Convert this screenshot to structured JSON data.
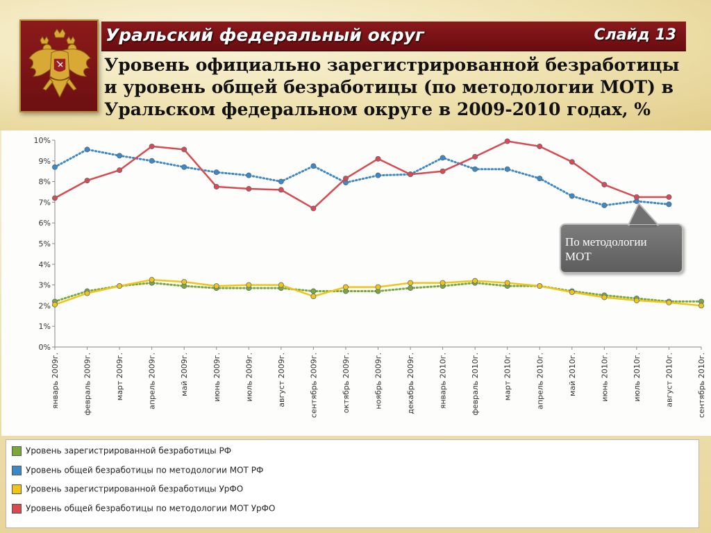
{
  "header": {
    "region_title": "Уральский федеральный округ",
    "slide_label": "Слайд 13",
    "subtitle_lines": [
      "Уровень официально зарегистрированной безработицы",
      "и уровень общей безработицы (по методологии МОТ) в",
      "Уральском федеральном округе в 2009-2010 годах, %"
    ]
  },
  "callout": {
    "text_line1": "По методологии",
    "text_line2": "МОТ"
  },
  "colors": {
    "green": "#7aa83a",
    "blue": "#3d87c2",
    "yellow": "#f0c419",
    "red": "#d84a4f"
  },
  "chart_data": {
    "type": "line",
    "categories": [
      "январь 2009г.",
      "февраль 2009г.",
      "март 2009г.",
      "апрель 2009г.",
      "май 2009г.",
      "июнь 2009г.",
      "июль 2009г.",
      "август 2009г.",
      "сентябрь 2009г.",
      "октябрь 2009г.",
      "ноябрь 2009г.",
      "декабрь 2009г.",
      "январь 2010г.",
      "февраль 2010г.",
      "март 2010г.",
      "апрель 2010г.",
      "май 2010г.",
      "июнь 2010г.",
      "июль 2010г.",
      "август 2010г.",
      "сентябрь 2010г."
    ],
    "y_ticks": [
      "0%",
      "1%",
      "2%",
      "3%",
      "4%",
      "5%",
      "6%",
      "7%",
      "8%",
      "9%",
      "10%"
    ],
    "ylim": [
      0,
      10
    ],
    "series": [
      {
        "name": "Уровень зарегистрированной безработицы РФ",
        "color": "#7aa83a",
        "style": "dotted",
        "values": [
          2.2,
          2.7,
          2.95,
          3.1,
          2.95,
          2.85,
          2.85,
          2.85,
          2.7,
          2.7,
          2.7,
          2.85,
          2.95,
          3.1,
          2.95,
          2.95,
          2.7,
          2.5,
          2.35,
          2.2,
          2.2
        ]
      },
      {
        "name": "Уровень общей безработицы по методологии МОТ РФ",
        "color": "#3d87c2",
        "style": "dotted",
        "values": [
          8.7,
          9.55,
          9.25,
          9.0,
          8.7,
          8.45,
          8.3,
          8.0,
          8.75,
          7.95,
          8.3,
          8.35,
          9.15,
          8.6,
          8.6,
          8.15,
          7.3,
          6.85,
          7.05,
          6.9,
          null
        ]
      },
      {
        "name": "Уровень зарегистрированной безработицы  УрФО",
        "color": "#f0c419",
        "style": "solid",
        "values": [
          2.05,
          2.6,
          2.95,
          3.25,
          3.15,
          2.95,
          3.0,
          3.0,
          2.45,
          2.9,
          2.9,
          3.1,
          3.1,
          3.2,
          3.1,
          2.95,
          2.65,
          2.4,
          2.25,
          2.15,
          2.0
        ]
      },
      {
        "name": "Уровень общей безработицы по методологии МОТ УрФО",
        "color": "#d84a4f",
        "style": "solid",
        "values": [
          7.2,
          8.05,
          8.55,
          9.7,
          9.55,
          7.75,
          7.65,
          7.6,
          6.7,
          8.15,
          9.1,
          8.35,
          8.5,
          9.2,
          9.95,
          9.7,
          8.95,
          7.85,
          7.25,
          7.25,
          null
        ]
      }
    ]
  },
  "legend": {
    "items": [
      {
        "label": "Уровень зарегистрированной безработицы РФ",
        "color": "#7aa83a"
      },
      {
        "label": "Уровень общей безработицы по методологии МОТ РФ",
        "color": "#3d87c2"
      },
      {
        "label": "Уровень зарегистрированной безработицы  УрФО",
        "color": "#f0c419"
      },
      {
        "label": "Уровень общей безработицы по методологии МОТ УрФО",
        "color": "#d84a4f"
      }
    ]
  }
}
